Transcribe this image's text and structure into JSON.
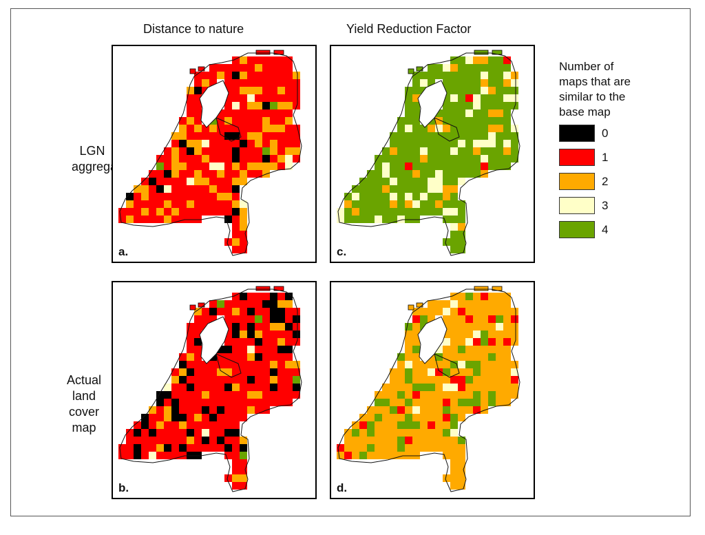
{
  "column_titles": [
    "Distance to nature",
    "Yield Reduction Factor"
  ],
  "row_titles": [
    "LGN\naggregation",
    "Actual\nland cover\nmap"
  ],
  "panels": [
    {
      "letter": "a.",
      "row": "LGN aggregation",
      "column": "Distance to nature",
      "dominant_value": 1,
      "secondary_values": [
        2,
        0
      ]
    },
    {
      "letter": "b.",
      "row": "Actual land cover map",
      "column": "Distance to nature",
      "dominant_value": 1,
      "secondary_values": [
        0,
        2
      ]
    },
    {
      "letter": "c.",
      "row": "LGN aggregation",
      "column": "Yield Reduction Factor",
      "dominant_value": 4,
      "secondary_values": [
        3,
        2
      ]
    },
    {
      "letter": "d.",
      "row": "Actual land cover map",
      "column": "Yield Reduction Factor",
      "dominant_value": 2,
      "secondary_values": [
        4,
        1,
        3
      ]
    }
  ],
  "legend": {
    "title": "Number of\nmaps that are\nsimilar to the\nbase map",
    "items": [
      {
        "label": "0",
        "color": "#000000"
      },
      {
        "label": "1",
        "color": "#ff0000"
      },
      {
        "label": "2",
        "color": "#ffaa00"
      },
      {
        "label": "3",
        "color": "#ffffc8"
      },
      {
        "label": "4",
        "color": "#6aa400"
      }
    ]
  }
}
